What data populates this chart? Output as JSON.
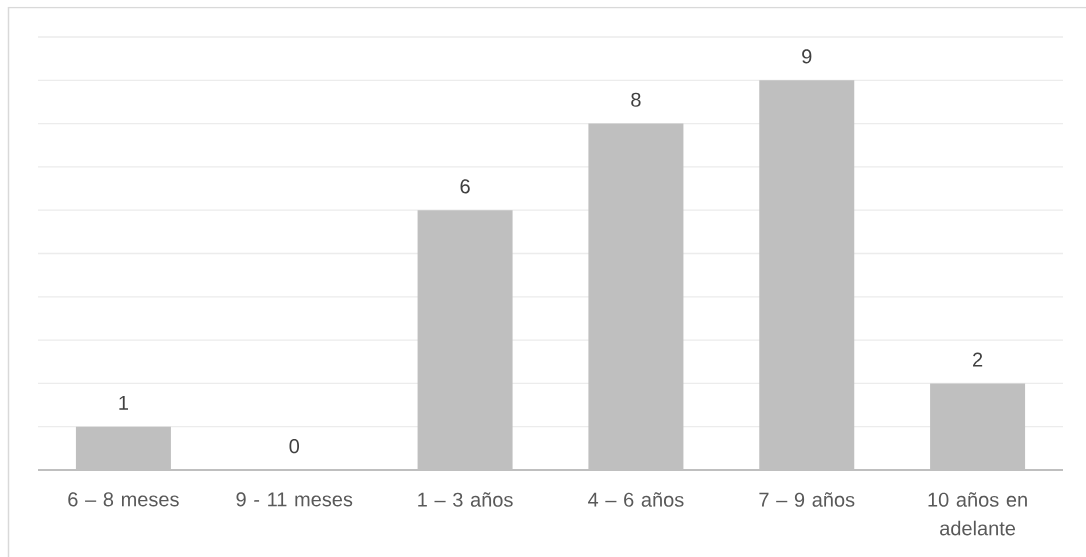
{
  "chart_data": {
    "type": "bar",
    "categories": [
      "6 – 8 meses",
      "9 - 11 meses",
      "1 – 3 años",
      "4 – 6 años",
      "7 – 9 años",
      "10 años en adelante"
    ],
    "values": [
      1,
      0,
      6,
      8,
      9,
      2
    ],
    "color": "#bfbfbf",
    "ylim": [
      0,
      10
    ],
    "yticks": [
      {
        "value": 0,
        "label": null
      },
      {
        "value": 1,
        "label": null
      },
      {
        "value": 2,
        "label": null
      },
      {
        "value": 3,
        "label": null
      },
      {
        "value": 4,
        "label": null
      },
      {
        "value": 5,
        "label": null
      },
      {
        "value": 6,
        "label": null
      },
      {
        "value": 7,
        "label": null
      },
      {
        "value": 8,
        "label": null
      },
      {
        "value": 9,
        "label": null
      },
      {
        "value": 10,
        "label": null
      }
    ],
    "grid": "y",
    "tick_labels": "x",
    "data_labels": true
  }
}
